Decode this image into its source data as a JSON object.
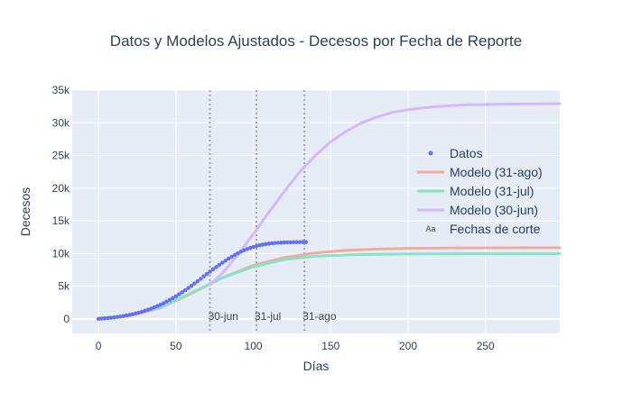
{
  "chart_data": {
    "type": "line",
    "title": "Datos y Modelos Ajustados - Decesos por Fecha de Reporte",
    "xlabel": "Días",
    "ylabel": "Decesos",
    "xlim": [
      -17,
      298
    ],
    "ylim": [
      -2200,
      35000
    ],
    "x_ticks": [
      0,
      50,
      100,
      150,
      200,
      250
    ],
    "x_tick_labels": [
      "0",
      "50",
      "100",
      "150",
      "200",
      "250"
    ],
    "y_ticks": [
      0,
      5000,
      10000,
      15000,
      20000,
      25000,
      30000,
      35000
    ],
    "y_tick_labels": [
      "0",
      "5k",
      "10k",
      "15k",
      "20k",
      "25k",
      "30k",
      "35k"
    ],
    "grid": true,
    "legend_position": "right",
    "colors": {
      "datos": "#636efa",
      "modelo_31_ago": "#f4a99e",
      "modelo_31_jul": "#86e3c6",
      "modelo_30_jun": "#d4b8fa",
      "cutoff": "#a0a3ad",
      "plot_bg": "#e5ecf6",
      "text": "#2a3f5f"
    },
    "series": [
      {
        "name": "Datos",
        "mode": "markers",
        "x": [
          0,
          2,
          4,
          6,
          8,
          10,
          12,
          14,
          16,
          18,
          20,
          22,
          24,
          26,
          28,
          30,
          32,
          34,
          36,
          38,
          40,
          42,
          44,
          46,
          48,
          50,
          52,
          54,
          56,
          58,
          60,
          62,
          64,
          66,
          68,
          70,
          72,
          74,
          76,
          78,
          80,
          82,
          84,
          86,
          88,
          90,
          92,
          94,
          96,
          98,
          100,
          102,
          104,
          106,
          108,
          110,
          112,
          114,
          116,
          118,
          120,
          122,
          124,
          126,
          128,
          130,
          132,
          134
        ],
        "y": [
          30,
          60,
          90,
          130,
          180,
          240,
          300,
          370,
          450,
          540,
          630,
          740,
          850,
          980,
          1110,
          1260,
          1420,
          1590,
          1780,
          1980,
          2190,
          2420,
          2660,
          2920,
          3190,
          3480,
          3780,
          4090,
          4410,
          4740,
          5080,
          5430,
          5790,
          6150,
          6520,
          6880,
          7240,
          7600,
          7940,
          8280,
          8610,
          8920,
          9230,
          9520,
          9800,
          10060,
          10290,
          10510,
          10700,
          10870,
          11020,
          11160,
          11270,
          11370,
          11450,
          11520,
          11580,
          11620,
          11660,
          11680,
          11700,
          11720,
          11730,
          11740,
          11750,
          11760,
          11770,
          11780
        ]
      },
      {
        "name": "Modelo (31-ago)",
        "mode": "lines",
        "x": [
          0,
          20,
          40,
          60,
          80,
          100,
          120,
          140,
          160,
          180,
          200,
          220,
          240,
          260,
          280,
          298
        ],
        "y": [
          100,
          500,
          1700,
          3900,
          6300,
          8200,
          9400,
          10100,
          10500,
          10700,
          10800,
          10850,
          10880,
          10890,
          10900,
          10900
        ]
      },
      {
        "name": "Modelo (31-jul)",
        "mode": "lines",
        "x": [
          0,
          20,
          40,
          60,
          80,
          100,
          120,
          140,
          160,
          180,
          200,
          220,
          240,
          260,
          280,
          298
        ],
        "y": [
          100,
          550,
          1800,
          4000,
          6300,
          8000,
          9100,
          9600,
          9800,
          9900,
          9950,
          9980,
          9990,
          10000,
          10000,
          10000
        ]
      },
      {
        "name": "Modelo (30-jun)",
        "mode": "lines",
        "x": [
          72,
          80,
          90,
          100,
          110,
          120,
          130,
          140,
          150,
          160,
          170,
          180,
          190,
          200,
          210,
          220,
          230,
          240,
          250,
          260,
          270,
          280,
          290,
          298
        ],
        "y": [
          5200,
          7000,
          9800,
          13000,
          16300,
          19500,
          22500,
          25000,
          27100,
          28700,
          30000,
          30900,
          31600,
          32000,
          32300,
          32500,
          32650,
          32750,
          32800,
          32850,
          32880,
          32900,
          32920,
          32930
        ]
      }
    ],
    "cutoffs": {
      "legend_name": "Fechas de corte",
      "legend_symbol": "Aa",
      "lines": [
        {
          "x": 72,
          "label": "30-jun"
        },
        {
          "x": 102,
          "label": "31-jul"
        },
        {
          "x": 133,
          "label": "31-ago"
        }
      ]
    }
  }
}
